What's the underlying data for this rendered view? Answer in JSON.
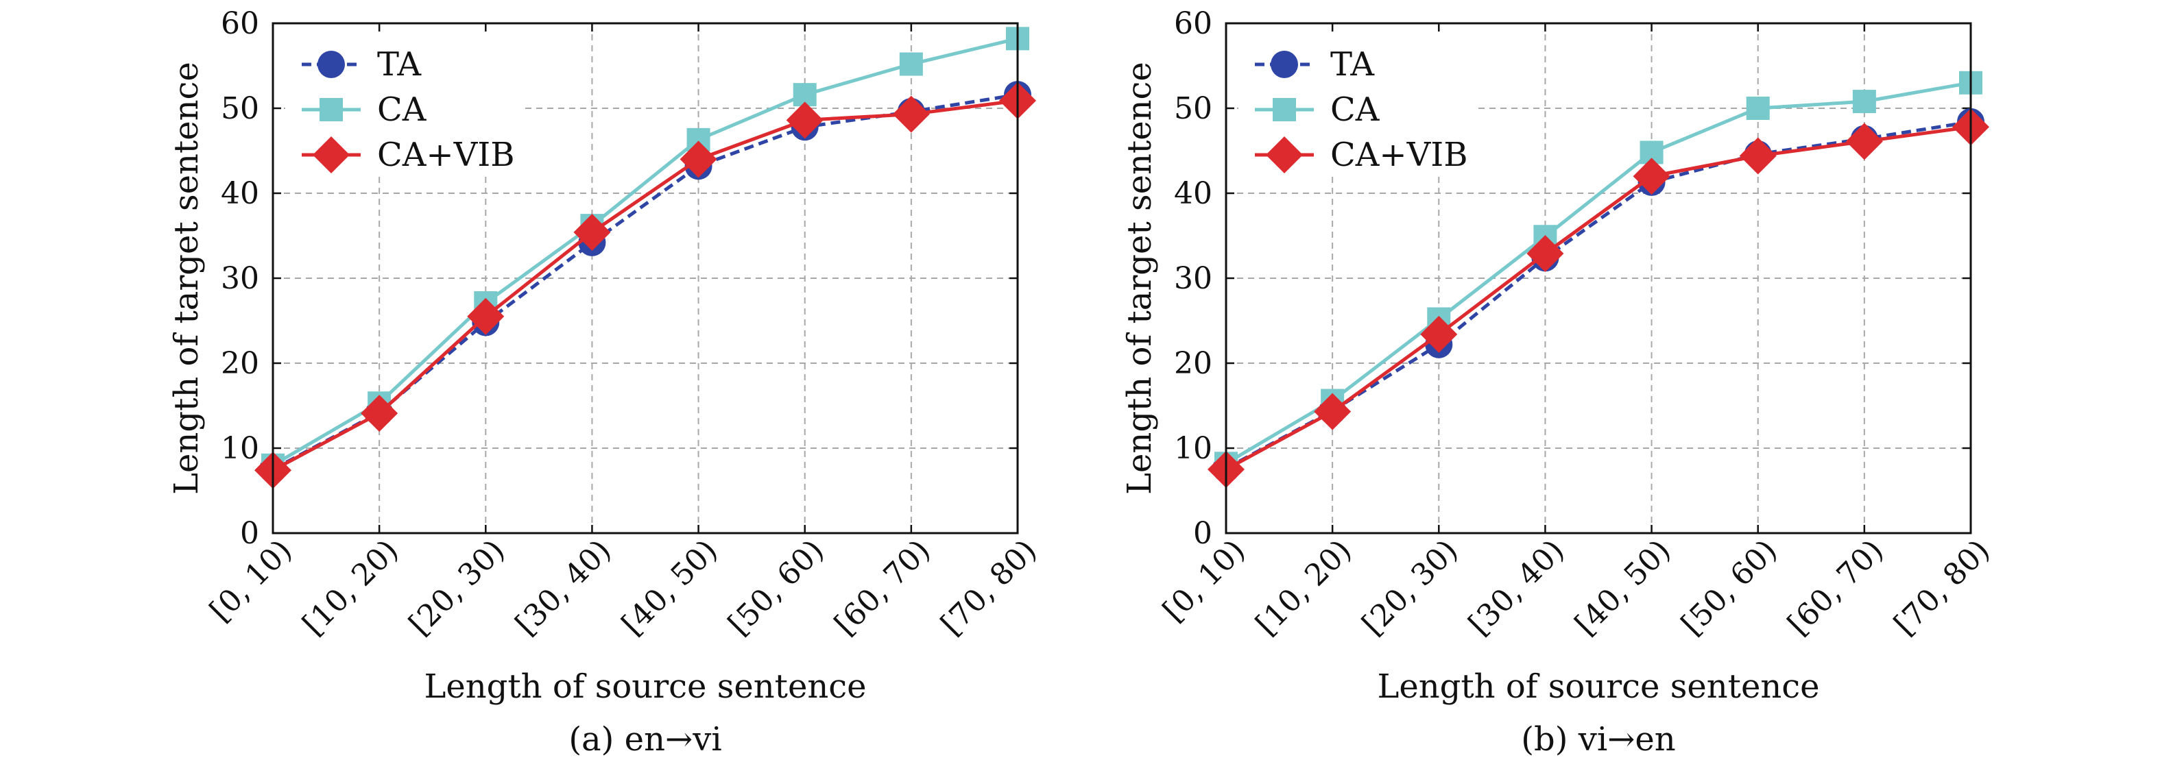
{
  "chart_data": [
    {
      "type": "line",
      "title": "",
      "caption": "(a) en→vi",
      "xlabel": "Length of source sentence",
      "ylabel": "Length of target sentence",
      "categories": [
        "[0, 10)",
        "[10, 20)",
        "[20, 30)",
        "[30, 40)",
        "[40, 50)",
        "[50, 60)",
        "[60, 70)",
        "[70, 80)"
      ],
      "ylim": [
        0,
        60
      ],
      "yticks": [
        "0",
        "10",
        "20",
        "30",
        "40",
        "50",
        "60"
      ],
      "grid": true,
      "legend_position": "top-left",
      "series": [
        {
          "name": "TA",
          "color": "#2f45a6",
          "marker": "circle",
          "dashed": true,
          "values": [
            7.5,
            14.2,
            24.8,
            34.2,
            43.2,
            47.8,
            49.6,
            51.6
          ]
        },
        {
          "name": "CA",
          "color": "#77c9cc",
          "marker": "square",
          "dashed": false,
          "values": [
            8.0,
            15.3,
            27.1,
            36.2,
            46.3,
            51.6,
            55.2,
            58.2
          ]
        },
        {
          "name": "CA+VIB",
          "color": "#dd2a2f",
          "marker": "diamond",
          "dashed": false,
          "values": [
            7.4,
            14.1,
            25.5,
            35.4,
            44.0,
            48.6,
            49.3,
            50.9
          ]
        }
      ]
    },
    {
      "type": "line",
      "title": "",
      "caption": "(b) vi→en",
      "xlabel": "Length of source sentence",
      "ylabel": "Length of target sentence",
      "categories": [
        "[0, 10)",
        "[10, 20)",
        "[20, 30)",
        "[30, 40)",
        "[40, 50)",
        "[50, 60)",
        "[60, 70)",
        "[70, 80)"
      ],
      "ylim": [
        0,
        60
      ],
      "yticks": [
        "0",
        "10",
        "20",
        "30",
        "40",
        "50",
        "60"
      ],
      "grid": true,
      "legend_position": "top-left",
      "series": [
        {
          "name": "TA",
          "color": "#2f45a6",
          "marker": "circle",
          "dashed": true,
          "values": [
            7.6,
            14.4,
            22.2,
            32.4,
            41.3,
            44.6,
            46.4,
            48.4
          ]
        },
        {
          "name": "CA",
          "color": "#77c9cc",
          "marker": "square",
          "dashed": false,
          "values": [
            8.2,
            15.6,
            25.2,
            34.9,
            44.8,
            50.0,
            50.8,
            53.0
          ]
        },
        {
          "name": "CA+VIB",
          "color": "#dd2a2f",
          "marker": "diamond",
          "dashed": false,
          "values": [
            7.5,
            14.3,
            23.4,
            32.9,
            42.0,
            44.4,
            46.1,
            47.8
          ]
        }
      ]
    }
  ]
}
